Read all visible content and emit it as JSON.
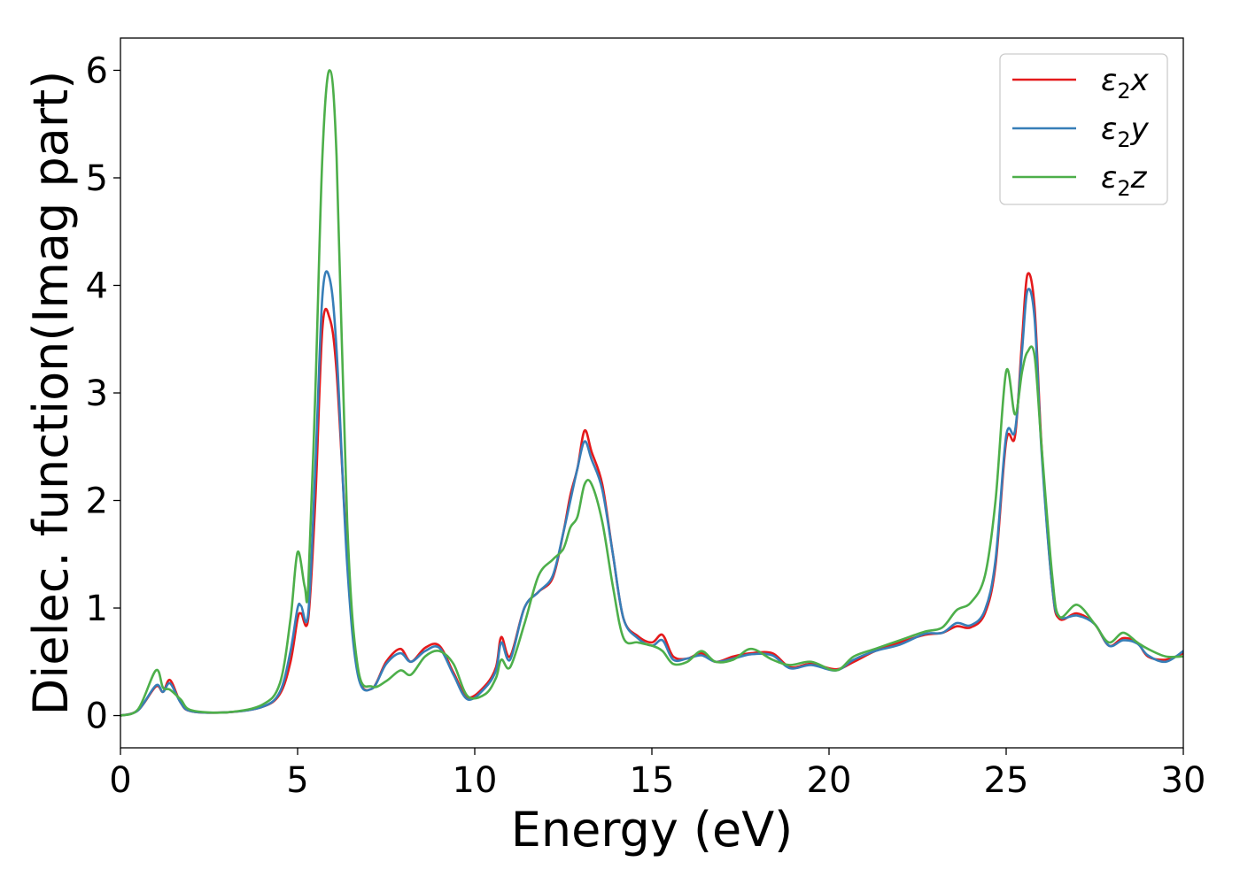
{
  "chart_data": {
    "type": "line",
    "xlabel": "Energy (eV)",
    "ylabel": "Dielec. function(Imag part)",
    "xlim": [
      0,
      30
    ],
    "ylim": [
      -0.3,
      6.3
    ],
    "xticks": [
      0,
      5,
      10,
      15,
      20,
      25,
      30
    ],
    "xtick_labels": [
      "0",
      "5",
      "10",
      "15",
      "20",
      "25",
      "30"
    ],
    "yticks": [
      0,
      1,
      2,
      3,
      4,
      5,
      6
    ],
    "ytick_labels": [
      "0",
      "1",
      "2",
      "3",
      "4",
      "5",
      "6"
    ],
    "grid": false,
    "legend_position": "top-right",
    "series": [
      {
        "name": "ε₂x",
        "legend": {
          "base": "ε",
          "sub": "2",
          "axis": "x"
        },
        "color": "#e41a1c",
        "points": [
          [
            0,
            0
          ],
          [
            0.5,
            0.05
          ],
          [
            1.0,
            0.27
          ],
          [
            1.2,
            0.22
          ],
          [
            1.4,
            0.33
          ],
          [
            1.7,
            0.12
          ],
          [
            2.0,
            0.04
          ],
          [
            3.0,
            0.03
          ],
          [
            4.0,
            0.08
          ],
          [
            4.5,
            0.2
          ],
          [
            4.8,
            0.5
          ],
          [
            5.0,
            0.9
          ],
          [
            5.1,
            0.95
          ],
          [
            5.3,
            0.9
          ],
          [
            5.5,
            2.0
          ],
          [
            5.7,
            3.6
          ],
          [
            5.9,
            3.7
          ],
          [
            6.1,
            3.2
          ],
          [
            6.4,
            1.5
          ],
          [
            6.7,
            0.4
          ],
          [
            7.1,
            0.25
          ],
          [
            7.5,
            0.5
          ],
          [
            7.9,
            0.62
          ],
          [
            8.2,
            0.5
          ],
          [
            8.6,
            0.63
          ],
          [
            9.0,
            0.65
          ],
          [
            9.4,
            0.4
          ],
          [
            9.8,
            0.17
          ],
          [
            10.3,
            0.28
          ],
          [
            10.6,
            0.45
          ],
          [
            10.75,
            0.73
          ],
          [
            11.0,
            0.55
          ],
          [
            11.4,
            1.0
          ],
          [
            11.8,
            1.15
          ],
          [
            12.2,
            1.28
          ],
          [
            12.5,
            1.7
          ],
          [
            12.7,
            2.05
          ],
          [
            12.9,
            2.3
          ],
          [
            13.1,
            2.65
          ],
          [
            13.3,
            2.45
          ],
          [
            13.6,
            2.15
          ],
          [
            13.9,
            1.5
          ],
          [
            14.2,
            0.9
          ],
          [
            14.6,
            0.74
          ],
          [
            15.0,
            0.68
          ],
          [
            15.3,
            0.75
          ],
          [
            15.6,
            0.55
          ],
          [
            16.0,
            0.53
          ],
          [
            16.4,
            0.58
          ],
          [
            16.8,
            0.5
          ],
          [
            17.3,
            0.55
          ],
          [
            17.8,
            0.58
          ],
          [
            18.4,
            0.58
          ],
          [
            18.9,
            0.45
          ],
          [
            19.5,
            0.48
          ],
          [
            20.2,
            0.43
          ],
          [
            20.7,
            0.5
          ],
          [
            21.3,
            0.6
          ],
          [
            22.0,
            0.68
          ],
          [
            22.7,
            0.75
          ],
          [
            23.2,
            0.77
          ],
          [
            23.6,
            0.83
          ],
          [
            24.0,
            0.82
          ],
          [
            24.4,
            0.95
          ],
          [
            24.7,
            1.4
          ],
          [
            25.0,
            2.55
          ],
          [
            25.25,
            2.6
          ],
          [
            25.45,
            3.5
          ],
          [
            25.6,
            4.1
          ],
          [
            25.8,
            3.8
          ],
          [
            26.0,
            2.5
          ],
          [
            26.3,
            1.2
          ],
          [
            26.5,
            0.9
          ],
          [
            27.0,
            0.95
          ],
          [
            27.5,
            0.85
          ],
          [
            27.9,
            0.65
          ],
          [
            28.3,
            0.72
          ],
          [
            28.7,
            0.68
          ],
          [
            29.0,
            0.55
          ],
          [
            29.5,
            0.52
          ],
          [
            30.0,
            0.58
          ]
        ]
      },
      {
        "name": "ε₂y",
        "legend": {
          "base": "ε",
          "sub": "2",
          "axis": "y"
        },
        "color": "#377eb8",
        "points": [
          [
            0,
            0
          ],
          [
            0.5,
            0.05
          ],
          [
            1.0,
            0.28
          ],
          [
            1.2,
            0.22
          ],
          [
            1.4,
            0.3
          ],
          [
            1.7,
            0.12
          ],
          [
            2.0,
            0.04
          ],
          [
            3.0,
            0.03
          ],
          [
            4.0,
            0.08
          ],
          [
            4.5,
            0.22
          ],
          [
            4.8,
            0.6
          ],
          [
            5.0,
            1.0
          ],
          [
            5.1,
            1.02
          ],
          [
            5.3,
            0.95
          ],
          [
            5.5,
            2.3
          ],
          [
            5.7,
            3.9
          ],
          [
            5.9,
            4.07
          ],
          [
            6.1,
            3.4
          ],
          [
            6.4,
            1.4
          ],
          [
            6.7,
            0.38
          ],
          [
            7.1,
            0.25
          ],
          [
            7.5,
            0.48
          ],
          [
            7.9,
            0.58
          ],
          [
            8.2,
            0.5
          ],
          [
            8.6,
            0.6
          ],
          [
            9.0,
            0.63
          ],
          [
            9.4,
            0.38
          ],
          [
            9.8,
            0.15
          ],
          [
            10.3,
            0.26
          ],
          [
            10.6,
            0.42
          ],
          [
            10.75,
            0.68
          ],
          [
            11.0,
            0.52
          ],
          [
            11.4,
            1.0
          ],
          [
            11.8,
            1.15
          ],
          [
            12.2,
            1.3
          ],
          [
            12.5,
            1.7
          ],
          [
            12.7,
            2.0
          ],
          [
            12.9,
            2.3
          ],
          [
            13.1,
            2.55
          ],
          [
            13.3,
            2.38
          ],
          [
            13.6,
            2.1
          ],
          [
            13.9,
            1.5
          ],
          [
            14.2,
            0.9
          ],
          [
            14.6,
            0.72
          ],
          [
            15.0,
            0.65
          ],
          [
            15.3,
            0.7
          ],
          [
            15.6,
            0.52
          ],
          [
            16.0,
            0.53
          ],
          [
            16.4,
            0.56
          ],
          [
            16.8,
            0.5
          ],
          [
            17.3,
            0.53
          ],
          [
            17.8,
            0.57
          ],
          [
            18.4,
            0.56
          ],
          [
            18.9,
            0.44
          ],
          [
            19.5,
            0.47
          ],
          [
            20.2,
            0.42
          ],
          [
            20.7,
            0.52
          ],
          [
            21.3,
            0.6
          ],
          [
            22.0,
            0.66
          ],
          [
            22.7,
            0.76
          ],
          [
            23.2,
            0.77
          ],
          [
            23.6,
            0.86
          ],
          [
            24.0,
            0.84
          ],
          [
            24.4,
            0.98
          ],
          [
            24.7,
            1.45
          ],
          [
            25.0,
            2.6
          ],
          [
            25.25,
            2.65
          ],
          [
            25.45,
            3.4
          ],
          [
            25.6,
            3.95
          ],
          [
            25.8,
            3.7
          ],
          [
            26.0,
            2.45
          ],
          [
            26.3,
            1.2
          ],
          [
            26.5,
            0.92
          ],
          [
            27.0,
            0.93
          ],
          [
            27.5,
            0.85
          ],
          [
            27.9,
            0.65
          ],
          [
            28.3,
            0.7
          ],
          [
            28.7,
            0.67
          ],
          [
            29.0,
            0.56
          ],
          [
            29.5,
            0.5
          ],
          [
            30.0,
            0.6
          ]
        ]
      },
      {
        "name": "ε₂z",
        "legend": {
          "base": "ε",
          "sub": "2",
          "axis": "z"
        },
        "color": "#4daf4a",
        "points": [
          [
            0,
            0
          ],
          [
            0.5,
            0.06
          ],
          [
            1.0,
            0.42
          ],
          [
            1.2,
            0.26
          ],
          [
            1.4,
            0.24
          ],
          [
            1.7,
            0.15
          ],
          [
            2.0,
            0.05
          ],
          [
            3.0,
            0.03
          ],
          [
            4.0,
            0.1
          ],
          [
            4.5,
            0.3
          ],
          [
            4.8,
            0.9
          ],
          [
            5.0,
            1.52
          ],
          [
            5.2,
            1.2
          ],
          [
            5.3,
            1.2
          ],
          [
            5.5,
            3.0
          ],
          [
            5.7,
            5.2
          ],
          [
            5.9,
            6.0
          ],
          [
            6.1,
            5.2
          ],
          [
            6.4,
            1.8
          ],
          [
            6.7,
            0.45
          ],
          [
            7.1,
            0.27
          ],
          [
            7.5,
            0.32
          ],
          [
            7.9,
            0.42
          ],
          [
            8.2,
            0.38
          ],
          [
            8.6,
            0.55
          ],
          [
            9.0,
            0.6
          ],
          [
            9.4,
            0.48
          ],
          [
            9.8,
            0.18
          ],
          [
            10.3,
            0.2
          ],
          [
            10.6,
            0.35
          ],
          [
            10.75,
            0.52
          ],
          [
            11.0,
            0.45
          ],
          [
            11.4,
            0.85
          ],
          [
            11.8,
            1.3
          ],
          [
            12.2,
            1.45
          ],
          [
            12.5,
            1.55
          ],
          [
            12.7,
            1.75
          ],
          [
            12.9,
            1.85
          ],
          [
            13.1,
            2.15
          ],
          [
            13.3,
            2.15
          ],
          [
            13.6,
            1.8
          ],
          [
            13.9,
            1.2
          ],
          [
            14.2,
            0.72
          ],
          [
            14.6,
            0.68
          ],
          [
            15.0,
            0.65
          ],
          [
            15.3,
            0.6
          ],
          [
            15.6,
            0.48
          ],
          [
            16.0,
            0.5
          ],
          [
            16.4,
            0.6
          ],
          [
            16.8,
            0.5
          ],
          [
            17.3,
            0.52
          ],
          [
            17.8,
            0.62
          ],
          [
            18.4,
            0.52
          ],
          [
            18.9,
            0.47
          ],
          [
            19.5,
            0.5
          ],
          [
            20.2,
            0.42
          ],
          [
            20.7,
            0.55
          ],
          [
            21.3,
            0.62
          ],
          [
            22.0,
            0.7
          ],
          [
            22.7,
            0.78
          ],
          [
            23.2,
            0.82
          ],
          [
            23.6,
            0.98
          ],
          [
            24.0,
            1.05
          ],
          [
            24.4,
            1.3
          ],
          [
            24.7,
            2.0
          ],
          [
            25.0,
            3.2
          ],
          [
            25.25,
            2.8
          ],
          [
            25.45,
            3.2
          ],
          [
            25.6,
            3.38
          ],
          [
            25.8,
            3.35
          ],
          [
            26.0,
            2.5
          ],
          [
            26.3,
            1.3
          ],
          [
            26.5,
            0.92
          ],
          [
            27.0,
            1.03
          ],
          [
            27.5,
            0.85
          ],
          [
            27.9,
            0.68
          ],
          [
            28.3,
            0.77
          ],
          [
            28.7,
            0.68
          ],
          [
            29.0,
            0.62
          ],
          [
            29.5,
            0.55
          ],
          [
            30.0,
            0.55
          ]
        ]
      }
    ]
  }
}
